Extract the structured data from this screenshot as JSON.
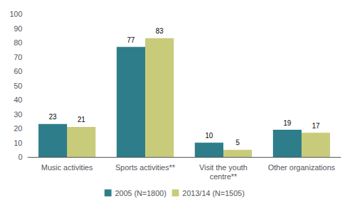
{
  "chart_data": {
    "type": "bar",
    "categories": [
      "Music activities",
      "Sports activities**",
      "Visit the youth\ncentre**",
      "Other organizations"
    ],
    "series": [
      {
        "name": "2005 (N=1800)",
        "color": "#2e7d8a",
        "values": [
          23,
          77,
          10,
          19
        ]
      },
      {
        "name": "2013/14 (N=1505)",
        "color": "#c8cc7a",
        "values": [
          21,
          83,
          5,
          17
        ]
      }
    ],
    "ylim": [
      0,
      100
    ],
    "yticks": [
      0,
      10,
      20,
      30,
      40,
      50,
      60,
      70,
      80,
      90,
      100
    ],
    "grid": false,
    "legend": "bottom",
    "data_labels": true
  }
}
